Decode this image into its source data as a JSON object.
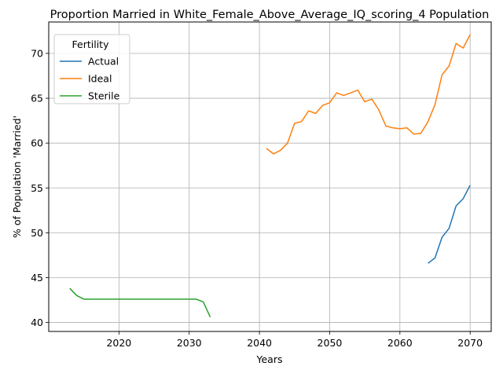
{
  "chart_data": {
    "type": "line",
    "title": "Proportion Married in White_Female_Above_Average_IQ_scoring_4 Population",
    "xlabel": "Years",
    "ylabel": "% of Population 'Married'",
    "xlim": [
      2010,
      2073
    ],
    "ylim": [
      39,
      73.5
    ],
    "xticks": [
      2020,
      2030,
      2040,
      2050,
      2060,
      2070
    ],
    "yticks": [
      40,
      45,
      50,
      55,
      60,
      65,
      70
    ],
    "grid": true,
    "legend": {
      "title": "Fertility",
      "placement": "top-left"
    },
    "series": [
      {
        "name": "Actual",
        "color": "#1f77b4",
        "x": [
          2064,
          2065,
          2066,
          2067,
          2068,
          2069,
          2070
        ],
        "y": [
          46.6,
          47.2,
          49.5,
          50.5,
          53.0,
          53.8,
          55.3
        ]
      },
      {
        "name": "Ideal",
        "color": "#ff7f0e",
        "x": [
          2041,
          2042,
          2043,
          2044,
          2045,
          2046,
          2047,
          2048,
          2049,
          2050,
          2051,
          2052,
          2053,
          2054,
          2055,
          2056,
          2057,
          2058,
          2059,
          2060,
          2061,
          2062,
          2063,
          2064,
          2065,
          2066,
          2067,
          2068,
          2069,
          2070
        ],
        "y": [
          59.4,
          58.8,
          59.2,
          60.0,
          62.2,
          62.4,
          63.6,
          63.3,
          64.2,
          64.5,
          65.6,
          65.3,
          65.6,
          65.9,
          64.6,
          64.9,
          63.7,
          61.9,
          61.7,
          61.6,
          61.7,
          61.0,
          61.1,
          62.4,
          64.3,
          67.6,
          68.6,
          71.1,
          70.6,
          72.1
        ]
      },
      {
        "name": "Sterile",
        "color": "#2ca02c",
        "x": [
          2013,
          2014,
          2015,
          2016,
          2017,
          2018,
          2019,
          2020,
          2021,
          2022,
          2023,
          2024,
          2025,
          2026,
          2027,
          2028,
          2029,
          2030,
          2031,
          2032,
          2033
        ],
        "y": [
          43.8,
          43.0,
          42.6,
          42.6,
          42.6,
          42.6,
          42.6,
          42.6,
          42.6,
          42.6,
          42.6,
          42.6,
          42.6,
          42.6,
          42.6,
          42.6,
          42.6,
          42.6,
          42.6,
          42.3,
          40.6
        ]
      }
    ]
  }
}
